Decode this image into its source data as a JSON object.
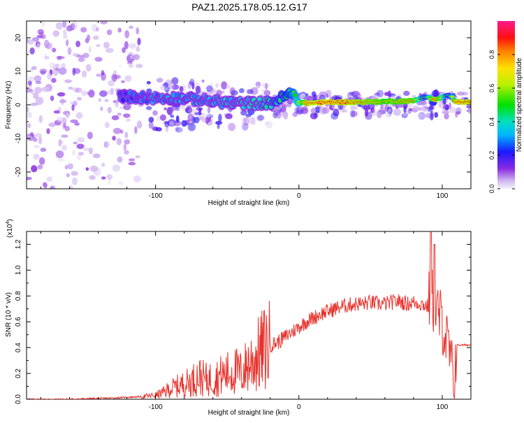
{
  "chart_data": [
    {
      "type": "heatmap",
      "title": "PAZ1.2025.178.05.12.G17",
      "xlabel": "Height of straight line (km)",
      "ylabel": "Frequency (Hz)",
      "xlim": [
        -190,
        120
      ],
      "ylim": [
        -25,
        25
      ],
      "x_ticks": [
        -100,
        0,
        100
      ],
      "y_ticks": [
        -20,
        -10,
        0,
        10,
        20
      ],
      "colorbar": {
        "label": "Normalized spectral amplitude",
        "range": [
          0,
          1
        ],
        "ticks": [
          0.0,
          0.2,
          0.4,
          0.6,
          0.8
        ]
      },
      "ridge": [
        {
          "x": -120,
          "f": 2.5,
          "amp": 0.25
        },
        {
          "x": -100,
          "f": 2.0,
          "amp": 0.3
        },
        {
          "x": -80,
          "f": 2.0,
          "amp": 0.3
        },
        {
          "x": -60,
          "f": 1.0,
          "amp": 0.35
        },
        {
          "x": -40,
          "f": 0.5,
          "amp": 0.35
        },
        {
          "x": -20,
          "f": 0.5,
          "amp": 0.4
        },
        {
          "x": -10,
          "f": 2.5,
          "amp": 0.45
        },
        {
          "x": -5,
          "f": 3.5,
          "amp": 0.5
        },
        {
          "x": 0,
          "f": 1.0,
          "amp": 0.6
        },
        {
          "x": 5,
          "f": 0.5,
          "amp": 0.85
        },
        {
          "x": 20,
          "f": 0.8,
          "amp": 0.9
        },
        {
          "x": 40,
          "f": 0.8,
          "amp": 0.85
        },
        {
          "x": 60,
          "f": 1.0,
          "amp": 0.75
        },
        {
          "x": 80,
          "f": 1.2,
          "amp": 0.8
        },
        {
          "x": 88,
          "f": 2.5,
          "amp": 0.4
        },
        {
          "x": 95,
          "f": 1.5,
          "amp": 0.9
        },
        {
          "x": 105,
          "f": 3.0,
          "amp": 0.4
        },
        {
          "x": 110,
          "f": 0.8,
          "amp": 0.9
        },
        {
          "x": 120,
          "f": 0.8,
          "amp": 0.85
        }
      ]
    },
    {
      "type": "line",
      "xlabel": "Height of straight line (km)",
      "ylabel": "SNR (10 * v/v)",
      "y_multiplier": "(x10",
      "y_multiplier_exp": "4",
      "y_multiplier_close": ")",
      "xlim": [
        -190,
        120
      ],
      "ylim": [
        0,
        1.3
      ],
      "x_ticks": [
        -100,
        0,
        100
      ],
      "y_ticks": [
        0.0,
        0.2,
        0.4,
        0.6,
        0.8,
        1.0,
        1.2
      ],
      "line_color": "#e8302a",
      "series": [
        {
          "x": [
            -190,
            -160,
            -130,
            -110,
            -100,
            -95,
            -90,
            -85,
            -80,
            -75,
            -70,
            -65,
            -60,
            -55,
            -50,
            -45,
            -40,
            -35,
            -30,
            -25,
            -20,
            -15,
            -10,
            -5,
            0,
            5,
            10,
            15,
            20,
            25,
            30,
            35,
            40,
            45,
            50,
            55,
            60,
            65,
            70,
            75,
            80,
            85,
            90,
            92,
            95,
            100,
            103,
            106,
            108,
            110,
            115,
            120
          ],
          "y": [
            0.0,
            0.0,
            0.01,
            0.02,
            0.03,
            0.05,
            0.08,
            0.1,
            0.12,
            0.14,
            0.18,
            0.15,
            0.16,
            0.18,
            0.2,
            0.22,
            0.2,
            0.28,
            0.32,
            0.38,
            0.42,
            0.44,
            0.48,
            0.52,
            0.56,
            0.6,
            0.63,
            0.66,
            0.68,
            0.7,
            0.72,
            0.73,
            0.74,
            0.74,
            0.75,
            0.74,
            0.74,
            0.75,
            0.76,
            0.74,
            0.75,
            0.74,
            0.72,
            0.82,
            0.7,
            0.6,
            0.45,
            0.3,
            0.1,
            0.42,
            0.42,
            0.42
          ]
        }
      ]
    }
  ]
}
